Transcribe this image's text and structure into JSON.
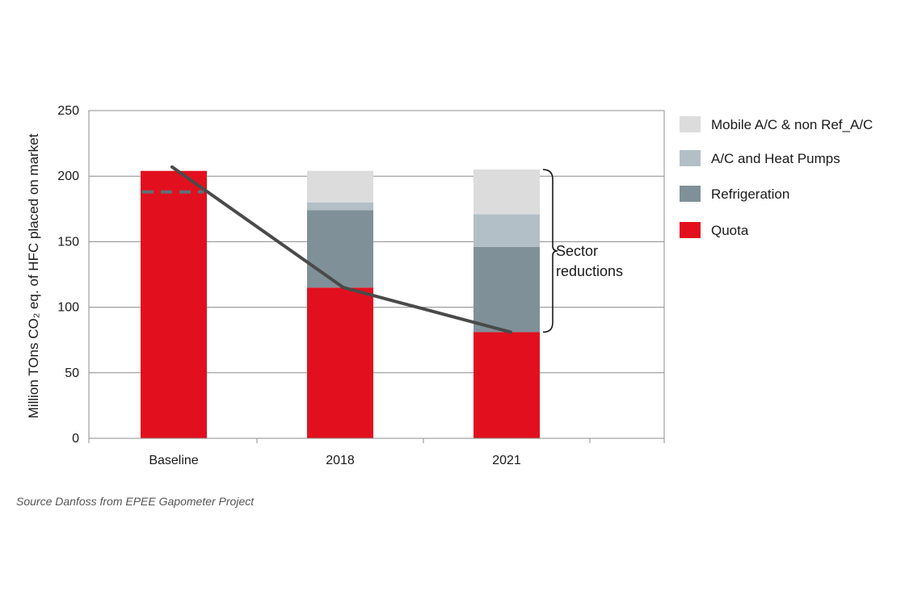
{
  "chart_data": {
    "type": "bar",
    "stacked": true,
    "ylabel": "Million TOns CO₂ eq. of HFC placed on market",
    "ylim": [
      0,
      250
    ],
    "yticks": [
      0,
      50,
      100,
      150,
      200,
      250
    ],
    "categories": [
      "Baseline",
      "2018",
      "2021"
    ],
    "series": [
      {
        "name": "Quota",
        "color": "#e2101e",
        "values": [
          204,
          115,
          81
        ]
      },
      {
        "name": "Refrigeration",
        "color": "#7f9099",
        "values": [
          0,
          59,
          65
        ]
      },
      {
        "name": "A/C and Heat Pumps",
        "color": "#b2bfc6",
        "values": [
          0,
          6,
          25
        ]
      },
      {
        "name": "Mobile A/C & non Ref_A/C",
        "color": "#dcdcdc",
        "values": [
          0,
          24,
          34
        ]
      }
    ],
    "legend_order": [
      "Mobile A/C & non Ref_A/C",
      "A/C and Heat Pumps",
      "Refrigeration",
      "Quota"
    ],
    "trend_line": {
      "color": "#4a4a4a",
      "values": [
        207,
        115,
        81
      ]
    },
    "baseline_dash": {
      "color": "#5e7078",
      "value": 188
    },
    "annotation": {
      "line1": "Sector",
      "line2": "reductions",
      "from": 81,
      "to": 205
    },
    "source": "Source Danfoss from EPEE Gapometer Project"
  }
}
